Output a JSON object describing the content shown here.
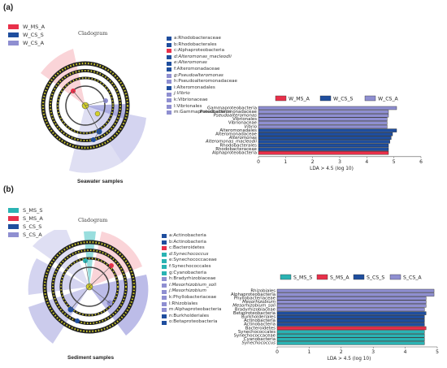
{
  "panel_a": {
    "label": "(a)",
    "legend": [
      {
        "name": "W_MS_A",
        "color": "#e8304a"
      },
      {
        "name": "W_CS_S",
        "color": "#1f4e9e"
      },
      {
        "name": "W_CS_A",
        "color": "#8f8fd1"
      }
    ],
    "cladogram_title": "Cladogram",
    "samples_label": "Seawater samples",
    "taxa_key": [
      {
        "text": "a:Rhodobacteraceae",
        "color": "#1f4e9e",
        "italic": false
      },
      {
        "text": "b:Rhodobacterales",
        "color": "#1f4e9e",
        "italic": false
      },
      {
        "text": "c:Alphaproteobacteria",
        "color": "#e8304a",
        "italic": false
      },
      {
        "text": "d:Alteromonas_macleodii",
        "color": "#1f4e9e",
        "italic": true
      },
      {
        "text": "e:Alteromonas",
        "color": "#1f4e9e",
        "italic": true
      },
      {
        "text": "f:Alteromonadaceae",
        "color": "#1f4e9e",
        "italic": false
      },
      {
        "text": "g:Pseudoalteromonas",
        "color": "#8f8fd1",
        "italic": true
      },
      {
        "text": "h:Pseudoalteromonadaceae",
        "color": "#8f8fd1",
        "italic": false
      },
      {
        "text": "i:Alteromonadales",
        "color": "#1f4e9e",
        "italic": false
      },
      {
        "text": "j:Vibrio",
        "color": "#8f8fd1",
        "italic": true
      },
      {
        "text": "k:Vibrionaceae",
        "color": "#8f8fd1",
        "italic": false
      },
      {
        "text": "l:Vibrionales",
        "color": "#8f8fd1",
        "italic": false
      },
      {
        "text": "m:Gammaproteobacteria",
        "color": "#8f8fd1",
        "italic": false
      }
    ]
  },
  "panel_b": {
    "label": "(b)",
    "legend": [
      {
        "name": "S_MS_S",
        "color": "#2ab3b3"
      },
      {
        "name": "S_MS_A",
        "color": "#e8304a"
      },
      {
        "name": "S_CS_S",
        "color": "#1f4e9e"
      },
      {
        "name": "S_CS_A",
        "color": "#8f8fd1"
      }
    ],
    "cladogram_title": "Cladogram",
    "samples_label": "Sediment samples",
    "taxa_key": [
      {
        "text": "a:Actinobacteria",
        "color": "#1f4e9e",
        "italic": false
      },
      {
        "text": "b:Actinobacteria",
        "color": "#1f4e9e",
        "italic": false
      },
      {
        "text": "c:Bacteroidetes",
        "color": "#e8304a",
        "italic": false
      },
      {
        "text": "d:Synechococcus",
        "color": "#2ab3b3",
        "italic": true
      },
      {
        "text": "e:Synechococcaceae",
        "color": "#2ab3b3",
        "italic": false
      },
      {
        "text": "f:Synechococcales",
        "color": "#2ab3b3",
        "italic": false
      },
      {
        "text": "g:Cyanobacteria",
        "color": "#2ab3b3",
        "italic": false
      },
      {
        "text": "h:Bradyrhizobiaceae",
        "color": "#8f8fd1",
        "italic": false
      },
      {
        "text": "i:Mesorhizobium_soli",
        "color": "#8f8fd1",
        "italic": true
      },
      {
        "text": "j:Mesorhizobium",
        "color": "#8f8fd1",
        "italic": true
      },
      {
        "text": "k:Phyllobacteriaceae",
        "color": "#8f8fd1",
        "italic": false
      },
      {
        "text": "l:Rhizobiales",
        "color": "#8f8fd1",
        "italic": false
      },
      {
        "text": "m:Alphaproteobacteria",
        "color": "#8f8fd1",
        "italic": false
      },
      {
        "text": "n:Burkholderiales",
        "color": "#1f4e9e",
        "italic": false
      },
      {
        "text": "o:Betaproteobacteria",
        "color": "#1f4e9e",
        "italic": false
      }
    ]
  },
  "chart_data": [
    {
      "type": "bar",
      "orientation": "horizontal",
      "xlabel": "LDA > 4.5 (log 10)",
      "xlim": [
        0,
        6
      ],
      "xticks": [
        0,
        1,
        2,
        3,
        4,
        5,
        6
      ],
      "legend": [
        {
          "name": "W_MS_A",
          "color": "#e8304a"
        },
        {
          "name": "W_CS_S",
          "color": "#1f4e9e"
        },
        {
          "name": "W_CS_A",
          "color": "#8f8fd1"
        }
      ],
      "bars": [
        {
          "label": "Gammaproteobacteria",
          "value": 5.1,
          "group": "W_CS_A",
          "italic": false
        },
        {
          "label": "Pseudoalteromonadaceae",
          "value": 4.8,
          "group": "W_CS_A",
          "italic": false
        },
        {
          "label": "Pseudoalteromonas",
          "value": 4.8,
          "group": "W_CS_A",
          "italic": true
        },
        {
          "label": "Vibrionales",
          "value": 4.75,
          "group": "W_CS_A",
          "italic": false
        },
        {
          "label": "Vibrionaceae",
          "value": 4.75,
          "group": "W_CS_A",
          "italic": false
        },
        {
          "label": "Vibrio",
          "value": 4.75,
          "group": "W_CS_A",
          "italic": true
        },
        {
          "label": "Alteromonadales",
          "value": 5.1,
          "group": "W_CS_S",
          "italic": false
        },
        {
          "label": "Alteromonadaceae",
          "value": 4.95,
          "group": "W_CS_S",
          "italic": false
        },
        {
          "label": "Alteromonas",
          "value": 4.9,
          "group": "W_CS_S",
          "italic": true
        },
        {
          "label": "Alteromonas_macleodii",
          "value": 4.85,
          "group": "W_CS_S",
          "italic": true
        },
        {
          "label": "Rhodobacterales",
          "value": 4.8,
          "group": "W_CS_S",
          "italic": false
        },
        {
          "label": "Rhodobacteraceae",
          "value": 4.8,
          "group": "W_CS_S",
          "italic": false
        },
        {
          "label": "Alphaproteobacteria",
          "value": 4.8,
          "group": "W_MS_A",
          "italic": false
        }
      ]
    },
    {
      "type": "bar",
      "orientation": "horizontal",
      "xlabel": "LDA > 4.5 (log 10)",
      "xlim": [
        0,
        5
      ],
      "xticks": [
        0,
        1,
        2,
        3,
        4,
        5
      ],
      "legend": [
        {
          "name": "S_MS_S",
          "color": "#2ab3b3"
        },
        {
          "name": "S_MS_A",
          "color": "#e8304a"
        },
        {
          "name": "S_CS_S",
          "color": "#1f4e9e"
        },
        {
          "name": "S_CS_A",
          "color": "#8f8fd1"
        }
      ],
      "bars": [
        {
          "label": "Rhizobiales",
          "value": 4.9,
          "group": "S_CS_A",
          "italic": false
        },
        {
          "label": "Alphaproteobacteria",
          "value": 4.9,
          "group": "S_CS_A",
          "italic": false
        },
        {
          "label": "Phyllobacteriaceae",
          "value": 4.65,
          "group": "S_CS_A",
          "italic": false
        },
        {
          "label": "Mesorhizobium",
          "value": 4.65,
          "group": "S_CS_A",
          "italic": true
        },
        {
          "label": "Mesorhizobium_soli",
          "value": 4.65,
          "group": "S_CS_A",
          "italic": true
        },
        {
          "label": "Bradyrhizobiaceae",
          "value": 4.6,
          "group": "S_CS_A",
          "italic": false
        },
        {
          "label": "Betaproteobacteria",
          "value": 4.65,
          "group": "S_CS_S",
          "italic": false
        },
        {
          "label": "Burkholderiales",
          "value": 4.6,
          "group": "S_CS_S",
          "italic": false
        },
        {
          "label": "Actinobacteria",
          "value": 4.6,
          "group": "S_CS_S",
          "italic": false
        },
        {
          "label": "Actinobacteria",
          "value": 4.6,
          "group": "S_CS_S",
          "italic": false
        },
        {
          "label": "Bacteroidetes",
          "value": 4.65,
          "group": "S_MS_A",
          "italic": false
        },
        {
          "label": "Synechococcales",
          "value": 4.6,
          "group": "S_MS_S",
          "italic": false
        },
        {
          "label": "Synechococcaceae",
          "value": 4.6,
          "group": "S_MS_S",
          "italic": false
        },
        {
          "label": "Cyanobacteria",
          "value": 4.6,
          "group": "S_MS_S",
          "italic": false
        },
        {
          "label": "Synechococcus",
          "value": 4.6,
          "group": "S_MS_S",
          "italic": true
        }
      ]
    }
  ]
}
